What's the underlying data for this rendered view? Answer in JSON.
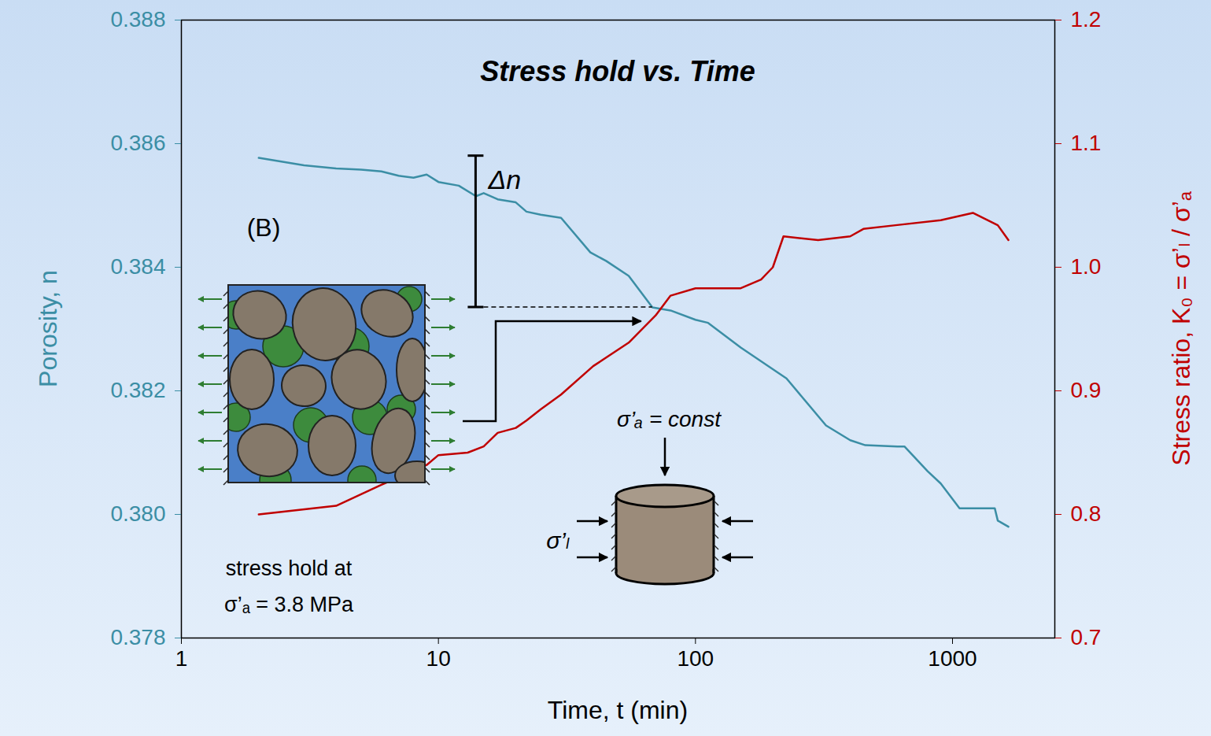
{
  "chart_data": {
    "type": "line",
    "title": "Stress hold vs. Time",
    "x_label": "Time, t (min)",
    "y_label": "Porosity, n",
    "y2_label": "Stress ratio, K₀ = σ’ₗ / σ’ₐ",
    "log": "x",
    "grid": false,
    "xlim": [
      1,
      2500
    ],
    "xticks": [
      1,
      10,
      100,
      1000
    ],
    "ylim": [
      0.378,
      0.388
    ],
    "yticks": [
      0.378,
      {
        "value": 0.38,
        "label": "0.380"
      },
      0.382,
      0.384,
      0.386,
      0.388
    ],
    "y2lim": [
      0.7,
      1.2
    ],
    "y2ticks": [
      0.7,
      0.8,
      0.9,
      {
        "value": 1,
        "label": "1.0"
      },
      1.1,
      1.2
    ],
    "series": [
      {
        "name": "Porosity, n",
        "color": "#3b8ea5",
        "axis": "y",
        "x": [
          2,
          3,
          4,
          5,
          6,
          7,
          8,
          9,
          10,
          12,
          14,
          15,
          17,
          20,
          22,
          25,
          30,
          39,
          45,
          55,
          68,
          80,
          100,
          112,
          150,
          226,
          322,
          400,
          458,
          610,
          650,
          800,
          900,
          1065,
          1200,
          1460,
          1500,
          1650
        ],
        "values": [
          0.38577,
          0.38565,
          0.3856,
          0.38558,
          0.38555,
          0.38548,
          0.38545,
          0.3855,
          0.38538,
          0.38532,
          0.38515,
          0.3852,
          0.3851,
          0.38505,
          0.3849,
          0.38485,
          0.3848,
          0.38424,
          0.3841,
          0.38386,
          0.38335,
          0.3833,
          0.38315,
          0.3831,
          0.3827,
          0.3822,
          0.38144,
          0.3812,
          0.38112,
          0.3811,
          0.3811,
          0.3807,
          0.3805,
          0.3801,
          0.3801,
          0.3801,
          0.3799,
          0.3798
        ]
      },
      {
        "name": "Stress ratio, K₀ = σ’ₗ / σ’ₐ",
        "color": "#c00000",
        "axis": "y2",
        "x": [
          2,
          4,
          6,
          8,
          9,
          10,
          13,
          15,
          17,
          20,
          22,
          25,
          30,
          40,
          55,
          70,
          80,
          100,
          150,
          180,
          200,
          220,
          300,
          400,
          450,
          600,
          900,
          1200,
          1500,
          1650
        ],
        "values": [
          0.8,
          0.807,
          0.824,
          0.835,
          0.84,
          0.848,
          0.85,
          0.855,
          0.866,
          0.87,
          0.876,
          0.885,
          0.897,
          0.92,
          0.939,
          0.961,
          0.977,
          0.983,
          0.983,
          0.99,
          1.0,
          1.025,
          1.022,
          1.025,
          1.031,
          1.034,
          1.038,
          1.044,
          1.034,
          1.022
        ]
      }
    ],
    "annotations": {
      "panel": "(B)",
      "delta": {
        "text": "Δn",
        "x": 14,
        "y": [
          0.3858,
          0.38335
        ]
      },
      "axial": "σ’ₐ = const",
      "lateral": "σ’ₗ",
      "note": [
        "stress hold at",
        "σ’ₐ = 3.8 MPa"
      ]
    }
  }
}
